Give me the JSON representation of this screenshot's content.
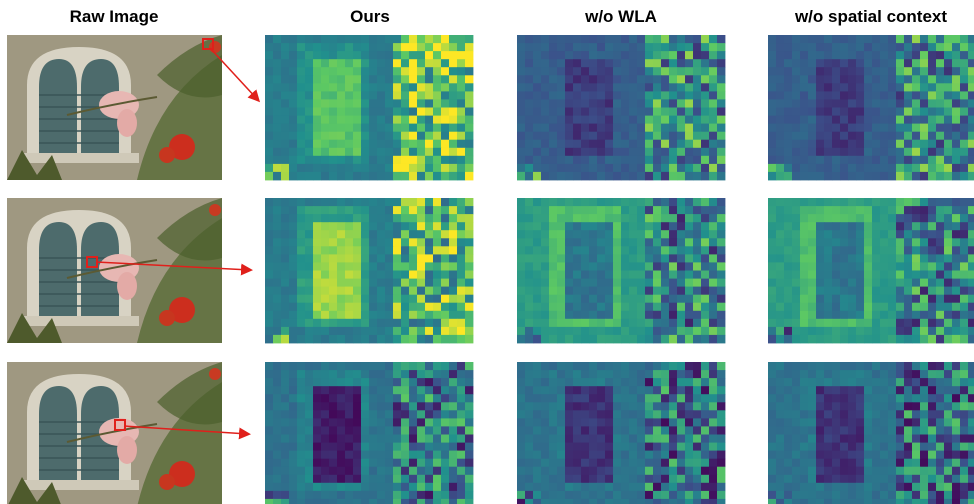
{
  "header": {
    "columns": [
      "Raw Image",
      "Ours",
      "w/o WLA",
      "w/o spatial context"
    ]
  }
}
